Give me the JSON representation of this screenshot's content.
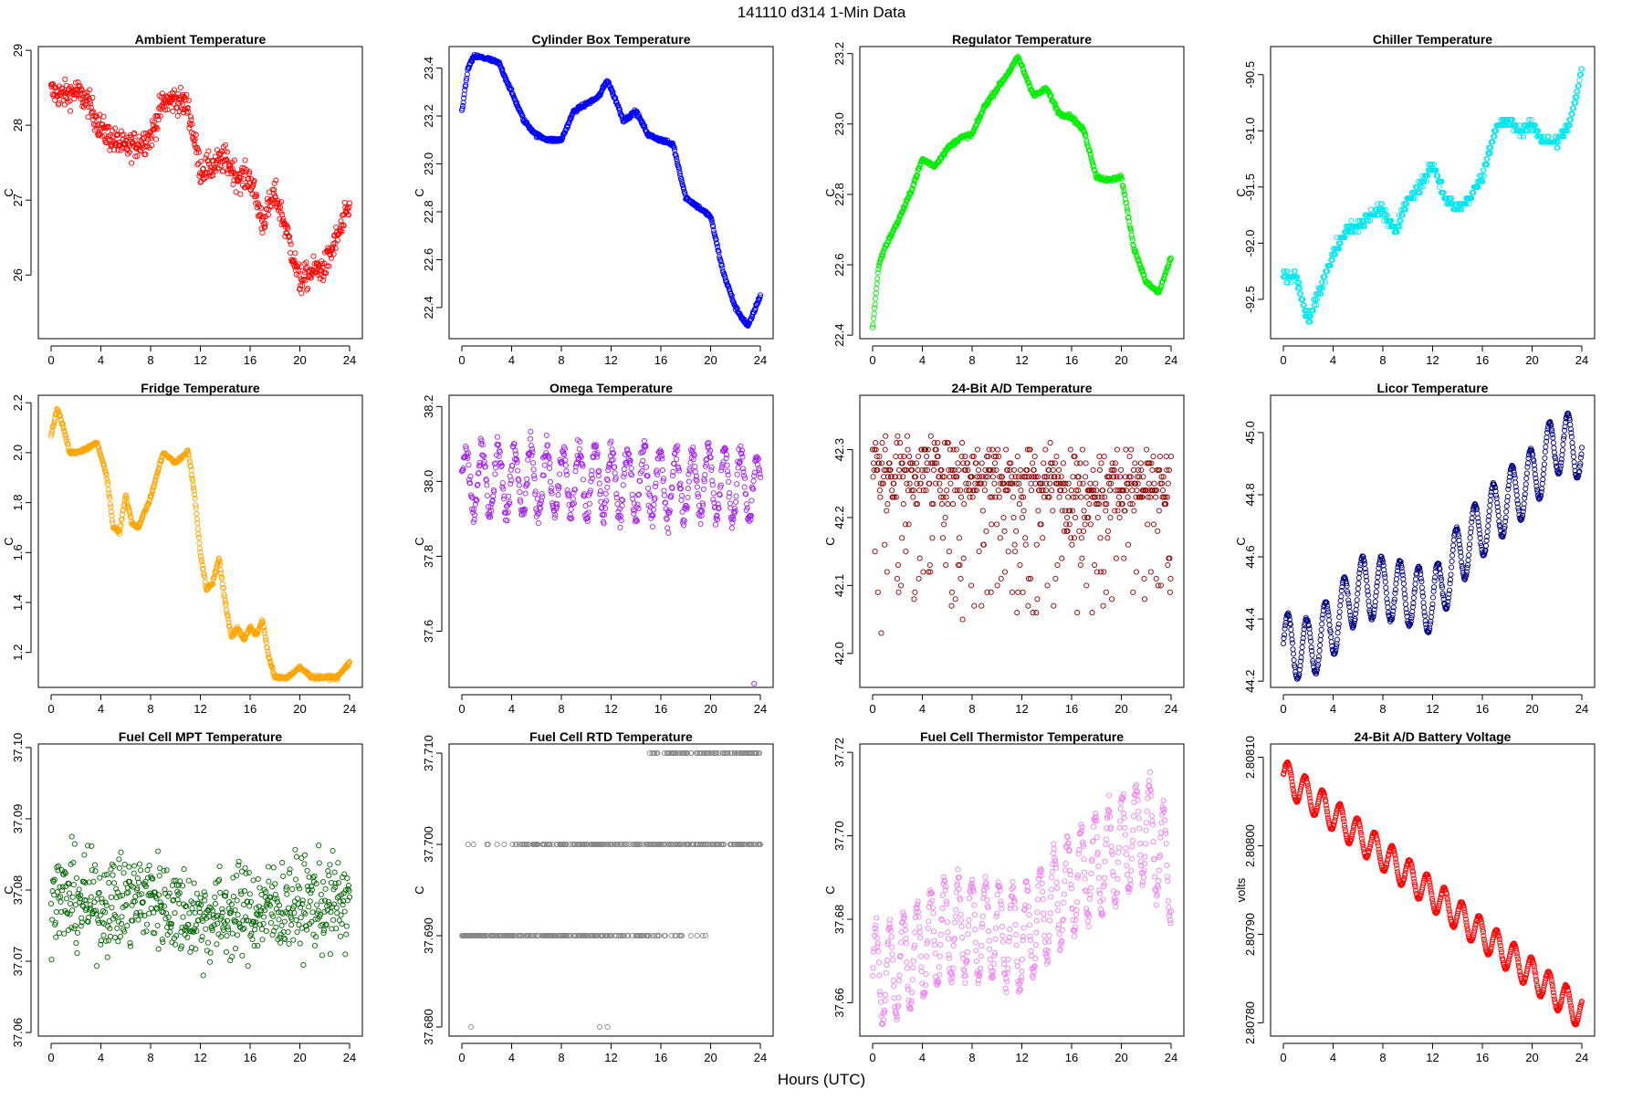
{
  "figure": {
    "title": "141110    d314    1-Min Data",
    "xlabel": "Hours (UTC)"
  },
  "chart_data": [
    {
      "type": "scatter",
      "title": "Ambient Temperature",
      "ylabel": "C",
      "color": "#ff0000",
      "xlim": [
        0,
        24
      ],
      "ylim": [
        25.15,
        29.05
      ],
      "yticks": [
        26,
        27,
        28,
        29
      ],
      "ytick_labels": [
        "26",
        "27",
        "28",
        "29"
      ],
      "xticks": [
        0,
        4,
        8,
        12,
        16,
        20,
        24
      ],
      "x": [
        0,
        1,
        2,
        3,
        4,
        5,
        6,
        7,
        8,
        9,
        10,
        11,
        12,
        13,
        14,
        15,
        16,
        17,
        18,
        19,
        20,
        21,
        22,
        23,
        24
      ],
      "y": [
        28.45,
        28.4,
        28.45,
        28.3,
        27.95,
        27.8,
        27.7,
        27.75,
        27.85,
        28.3,
        28.35,
        28.25,
        27.4,
        27.45,
        27.55,
        27.3,
        27.3,
        26.7,
        27.1,
        26.55,
        25.9,
        26.05,
        26.1,
        26.5,
        26.9
      ],
      "noise": 0.18,
      "pattern": "noisy"
    },
    {
      "type": "scatter",
      "title": "Cylinder Box Temperature",
      "ylabel": "C",
      "color": "#0000ff",
      "xlim": [
        0,
        24
      ],
      "ylim": [
        22.27,
        23.49
      ],
      "yticks": [
        22.4,
        22.6,
        22.8,
        23.0,
        23.2,
        23.4
      ],
      "ytick_labels": [
        "22.4",
        "22.6",
        "22.8",
        "23.0",
        "23.2",
        "23.4"
      ],
      "xticks": [
        0,
        4,
        8,
        12,
        16,
        20,
        24
      ],
      "x": [
        0,
        0.5,
        1,
        2,
        3,
        4,
        5,
        6,
        7,
        8,
        9,
        10,
        11,
        11.7,
        12.5,
        13,
        14,
        15,
        16,
        17,
        18,
        19,
        20,
        21,
        22,
        23,
        24
      ],
      "y": [
        23.22,
        23.4,
        23.45,
        23.44,
        23.42,
        23.3,
        23.18,
        23.12,
        23.1,
        23.1,
        23.22,
        23.25,
        23.28,
        23.35,
        23.25,
        23.18,
        23.22,
        23.12,
        23.1,
        23.08,
        22.86,
        22.82,
        22.78,
        22.55,
        22.4,
        22.32,
        22.45
      ],
      "noise": 0.008,
      "pattern": "smooth"
    },
    {
      "type": "scatter",
      "title": "Regulator Temperature",
      "ylabel": "C",
      "color": "#00ee00",
      "xlim": [
        0,
        24
      ],
      "ylim": [
        22.39,
        23.22
      ],
      "yticks": [
        22.4,
        22.6,
        22.8,
        23.0,
        23.2
      ],
      "ytick_labels": [
        "22.4",
        "22.6",
        "22.8",
        "23.0",
        "23.2"
      ],
      "xticks": [
        0,
        4,
        8,
        12,
        16,
        20,
        24
      ],
      "x": [
        0,
        0.5,
        1,
        2,
        3,
        4,
        5,
        6,
        7,
        8,
        9,
        10,
        11,
        11.7,
        12.5,
        13,
        14,
        15,
        16,
        17,
        18,
        19,
        20,
        21,
        22,
        23,
        24
      ],
      "y": [
        22.42,
        22.6,
        22.65,
        22.72,
        22.8,
        22.9,
        22.88,
        22.93,
        22.96,
        22.97,
        23.05,
        23.1,
        23.15,
        23.19,
        23.12,
        23.08,
        23.1,
        23.03,
        23.02,
        22.98,
        22.85,
        22.84,
        22.85,
        22.65,
        22.55,
        22.52,
        22.62
      ],
      "noise": 0.006,
      "pattern": "smooth"
    },
    {
      "type": "scatter",
      "title": "Chiller Temperature",
      "ylabel": "C",
      "color": "#00e5ee",
      "xlim": [
        0,
        24
      ],
      "ylim": [
        -92.85,
        -90.25
      ],
      "yticks": [
        -92.5,
        -92.0,
        -91.5,
        -91.0,
        -90.5
      ],
      "ytick_labels": [
        "-92.5",
        "-92.0",
        "-91.5",
        "-91.0",
        "-90.5"
      ],
      "xticks": [
        0,
        4,
        8,
        12,
        16,
        20,
        24
      ],
      "x": [
        0,
        1,
        2,
        3,
        4,
        5,
        6,
        7,
        8,
        9,
        10,
        11,
        12,
        13,
        14,
        15,
        16,
        17,
        18,
        19,
        20,
        21,
        22,
        23,
        24
      ],
      "y": [
        -92.3,
        -92.3,
        -92.7,
        -92.4,
        -92.1,
        -91.9,
        -91.85,
        -91.75,
        -91.7,
        -91.9,
        -91.6,
        -91.5,
        -91.3,
        -91.6,
        -91.7,
        -91.6,
        -91.4,
        -91.0,
        -90.9,
        -91.0,
        -90.95,
        -91.1,
        -91.1,
        -90.95,
        -90.45
      ],
      "noise": 0.05,
      "pattern": "quantized",
      "step": 0.05
    },
    {
      "type": "scatter",
      "title": "Fridge Temperature",
      "ylabel": "C",
      "color": "#ffa500",
      "xlim": [
        0,
        24
      ],
      "ylim": [
        1.06,
        2.23
      ],
      "yticks": [
        1.2,
        1.4,
        1.6,
        1.8,
        2.0,
        2.2
      ],
      "ytick_labels": [
        "1.2",
        "1.4",
        "1.6",
        "1.8",
        "2.0",
        "2.2"
      ],
      "xticks": [
        0,
        4,
        8,
        12,
        16,
        20,
        24
      ],
      "x": [
        0,
        0.5,
        1,
        1.5,
        2,
        3,
        3.7,
        4.5,
        5,
        5.5,
        6,
        6.5,
        7,
        8,
        9,
        10,
        10.5,
        11,
        11.5,
        12,
        12.5,
        13,
        13.5,
        14,
        14.5,
        15,
        15.5,
        16,
        16.5,
        17,
        17.5,
        18,
        19,
        20,
        21,
        22,
        23,
        24
      ],
      "y": [
        2.07,
        2.18,
        2.1,
        2.0,
        2.0,
        2.02,
        2.04,
        1.9,
        1.7,
        1.68,
        1.83,
        1.72,
        1.7,
        1.82,
        2.0,
        1.96,
        1.98,
        2.01,
        1.85,
        1.6,
        1.45,
        1.48,
        1.58,
        1.4,
        1.26,
        1.3,
        1.25,
        1.3,
        1.27,
        1.33,
        1.18,
        1.1,
        1.1,
        1.14,
        1.1,
        1.1,
        1.1,
        1.16
      ],
      "noise": 0.007,
      "pattern": "smooth"
    },
    {
      "type": "scatter",
      "title": "Omega Temperature",
      "ylabel": "C",
      "color": "#a020f0",
      "xlim": [
        0,
        24
      ],
      "ylim": [
        37.45,
        38.23
      ],
      "yticks": [
        37.6,
        37.8,
        38.0,
        38.2
      ],
      "ytick_labels": [
        "37.6",
        "37.8",
        "38.0",
        "38.2"
      ],
      "xticks": [
        0,
        4,
        8,
        12,
        16,
        20,
        24
      ],
      "x": [
        0,
        4,
        8,
        12,
        16,
        20,
        24
      ],
      "y": [
        38.0,
        38.0,
        38.0,
        38.0,
        37.99,
        38.0,
        37.98
      ],
      "noise": 0.03,
      "pattern": "oscillate",
      "amp": 0.09,
      "period": 1.3,
      "outlier": [
        23.5,
        37.46
      ]
    },
    {
      "type": "scatter",
      "title": "24-Bit A/D Temperature",
      "ylabel": "C",
      "color": "#8b0000",
      "xlim": [
        0,
        24
      ],
      "ylim": [
        41.95,
        42.38
      ],
      "yticks": [
        42.0,
        42.1,
        42.2,
        42.3
      ],
      "ytick_labels": [
        "42.0",
        "42.1",
        "42.2",
        "42.3"
      ],
      "xticks": [
        0,
        4,
        8,
        12,
        16,
        20,
        24
      ],
      "x": [
        0,
        4,
        8,
        12,
        16,
        20,
        24
      ],
      "y": [
        42.27,
        42.27,
        42.27,
        42.26,
        42.25,
        42.25,
        42.25
      ],
      "noise": 0.05,
      "pattern": "quantized",
      "step": 0.01,
      "dips": 0.25
    },
    {
      "type": "scatter",
      "title": "Licor Temperature",
      "ylabel": "C",
      "color": "#000080",
      "xlim": [
        0,
        24
      ],
      "ylim": [
        44.18,
        45.12
      ],
      "yticks": [
        44.2,
        44.4,
        44.6,
        44.8,
        45.0
      ],
      "ytick_labels": [
        "44.2",
        "44.4",
        "44.6",
        "44.8",
        "45.0"
      ],
      "xticks": [
        0,
        4,
        8,
        12,
        16,
        20,
        24
      ],
      "x": [
        0,
        2,
        4,
        6,
        8,
        10,
        12,
        14,
        16,
        18,
        20,
        22,
        24
      ],
      "y": [
        44.32,
        44.3,
        44.38,
        44.5,
        44.5,
        44.48,
        44.45,
        44.6,
        44.7,
        44.78,
        44.85,
        44.97,
        44.95
      ],
      "noise": 0.004,
      "pattern": "oscillate",
      "amp": 0.1,
      "period": 1.5
    },
    {
      "type": "scatter",
      "title": "Fuel Cell MPT Temperature",
      "ylabel": "C",
      "color": "#006400",
      "xlim": [
        0,
        24
      ],
      "ylim": [
        37.0595,
        37.1005
      ],
      "yticks": [
        37.06,
        37.07,
        37.08,
        37.09,
        37.1
      ],
      "ytick_labels": [
        "37.06",
        "37.07",
        "37.08",
        "37.09",
        "37.10"
      ],
      "xticks": [
        0,
        4,
        8,
        12,
        16,
        20,
        24
      ],
      "x": [
        0,
        4,
        8,
        12,
        16,
        20,
        24
      ],
      "y": [
        37.079,
        37.078,
        37.079,
        37.076,
        37.077,
        37.078,
        37.078
      ],
      "noise": 0.0065,
      "pattern": "noisy"
    },
    {
      "type": "scatter",
      "title": "Fuel Cell RTD Temperature",
      "ylabel": "C",
      "color": "#888888",
      "xlim": [
        0,
        24
      ],
      "ylim": [
        37.679,
        37.711
      ],
      "yticks": [
        37.68,
        37.69,
        37.7,
        37.71
      ],
      "ytick_labels": [
        "37.680",
        "37.690",
        "37.700",
        "37.710"
      ],
      "xticks": [
        0,
        4,
        8,
        12,
        16,
        20,
        24
      ],
      "levels": [
        37.68,
        37.69,
        37.7,
        37.71
      ],
      "pattern": "levels"
    },
    {
      "type": "scatter",
      "title": "Fuel Cell Thermistor Temperature",
      "ylabel": "C",
      "color": "#ee82ee",
      "xlim": [
        0,
        24
      ],
      "ylim": [
        37.652,
        37.722
      ],
      "yticks": [
        37.66,
        37.68,
        37.7,
        37.72
      ],
      "ytick_labels": [
        "37.66",
        "37.68",
        "37.70",
        "37.72"
      ],
      "xticks": [
        0,
        4,
        8,
        12,
        16,
        20,
        24
      ],
      "x": [
        0,
        2,
        4,
        6,
        8,
        10,
        12,
        14,
        16,
        18,
        20,
        22,
        24
      ],
      "y": [
        37.666,
        37.668,
        37.673,
        37.678,
        37.678,
        37.677,
        37.675,
        37.682,
        37.688,
        37.693,
        37.697,
        37.702,
        37.692
      ],
      "noise": 0.002,
      "pattern": "oscillate",
      "amp": 0.012,
      "period": 1.1
    },
    {
      "type": "scatter",
      "title": "24-Bit A/D Battery Voltage",
      "ylabel": "volts",
      "color": "#ff0000",
      "xlim": [
        0,
        24
      ],
      "ylim": [
        2.807785,
        2.808115
      ],
      "yticks": [
        2.8078,
        2.8079,
        2.808,
        2.8081
      ],
      "ytick_labels": [
        "2.80780",
        "2.80790",
        "2.80800",
        "2.80810"
      ],
      "xticks": [
        0,
        4,
        8,
        12,
        16,
        20,
        24
      ],
      "x": [
        0,
        24
      ],
      "y": [
        2.80808,
        2.80781
      ],
      "noise": 8e-07,
      "pattern": "oscillate",
      "amp": 1.8e-05,
      "period": 1.4
    }
  ]
}
